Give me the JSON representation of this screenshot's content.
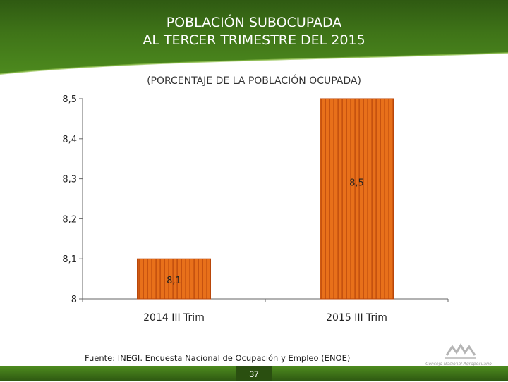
{
  "header": {
    "title_line1": "POBLACIÓN SUBOCUPADA",
    "title_line2": "AL TERCER TRIMESTRE DEL 2015",
    "subtitle": "(PORCENTAJE DE LA POBLACIÓN OCUPADA)"
  },
  "footer": {
    "source": "Fuente: INEGI. Encuesta Nacional de Ocupación y Empleo (ENOE)",
    "page_number": "37",
    "logo_text": "Consejo Nacional Agropecuario"
  },
  "colors": {
    "header_green": "#3f7418",
    "bar_fill": "#e8701a",
    "bar_stripe": "#b8460a"
  },
  "chart_data": {
    "type": "bar",
    "categories": [
      "2014 III Trim",
      "2015 III Trim"
    ],
    "values": [
      8.1,
      8.5
    ],
    "data_labels": [
      "8,1",
      "8,5"
    ],
    "ylim": [
      8,
      8.5
    ],
    "yticks": [
      8,
      8.1,
      8.2,
      8.3,
      8.4,
      8.5
    ],
    "ytick_labels": [
      "8",
      "8,1",
      "8,2",
      "8,3",
      "8,4",
      "8,5"
    ],
    "xlabel": "",
    "ylabel": "",
    "grid": false,
    "legend": "none"
  }
}
